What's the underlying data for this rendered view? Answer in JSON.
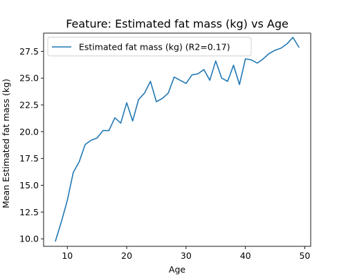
{
  "chart_data": {
    "type": "line",
    "title": "Feature: Estimated fat mass (kg) vs Age",
    "xlabel": "Age",
    "ylabel": "Mean Estimated fat mass (kg)",
    "xlim": [
      6.0,
      51.0
    ],
    "ylim": [
      9.3,
      29.2
    ],
    "x_ticks": [
      10,
      20,
      30,
      40,
      50
    ],
    "y_ticks": [
      10.0,
      12.5,
      15.0,
      17.5,
      20.0,
      22.5,
      25.0,
      27.5
    ],
    "x_tick_labels": [
      "10",
      "20",
      "30",
      "40",
      "50"
    ],
    "y_tick_labels": [
      "10.0",
      "12.5",
      "15.0",
      "17.5",
      "20.0",
      "22.5",
      "25.0",
      "27.5"
    ],
    "grid": false,
    "legend_position": "top-left",
    "series": [
      {
        "name": "Estimated fat mass (kg) (R2=0.17)",
        "color": "#1f77b4",
        "x": [
          8,
          9,
          10,
          11,
          12,
          13,
          14,
          15,
          16,
          17,
          18,
          19,
          20,
          21,
          22,
          23,
          24,
          25,
          26,
          27,
          28,
          29,
          30,
          31,
          32,
          33,
          34,
          35,
          36,
          37,
          38,
          39,
          40,
          41,
          42,
          43,
          44,
          45,
          46,
          47,
          48,
          49
        ],
        "y": [
          9.8,
          11.6,
          13.6,
          16.2,
          17.2,
          18.8,
          19.2,
          19.4,
          20.1,
          20.1,
          21.3,
          20.8,
          22.7,
          21.0,
          23.0,
          23.6,
          24.7,
          22.8,
          23.1,
          23.6,
          25.1,
          24.8,
          24.5,
          25.3,
          25.4,
          25.8,
          24.8,
          26.6,
          25.0,
          24.7,
          26.2,
          24.4,
          26.8,
          26.7,
          26.4,
          26.8,
          27.3,
          27.6,
          27.8,
          28.2,
          28.8,
          27.9
        ]
      }
    ]
  }
}
